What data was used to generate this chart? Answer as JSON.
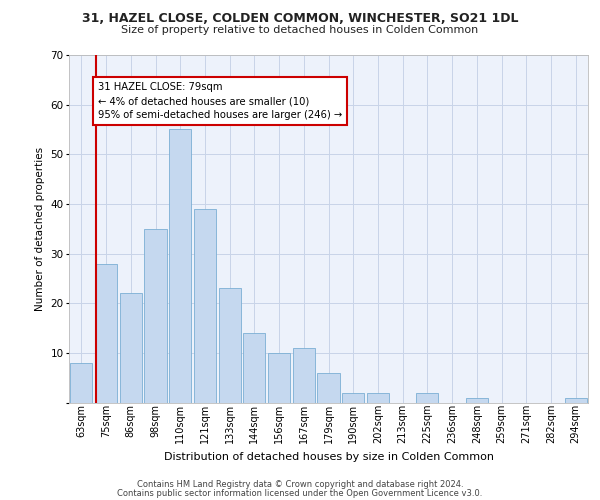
{
  "title_line1": "31, HAZEL CLOSE, COLDEN COMMON, WINCHESTER, SO21 1DL",
  "title_line2": "Size of property relative to detached houses in Colden Common",
  "xlabel": "Distribution of detached houses by size in Colden Common",
  "ylabel": "Number of detached properties",
  "categories": [
    "63sqm",
    "75sqm",
    "86sqm",
    "98sqm",
    "110sqm",
    "121sqm",
    "133sqm",
    "144sqm",
    "156sqm",
    "167sqm",
    "179sqm",
    "190sqm",
    "202sqm",
    "213sqm",
    "225sqm",
    "236sqm",
    "248sqm",
    "259sqm",
    "271sqm",
    "282sqm",
    "294sqm"
  ],
  "values": [
    8,
    28,
    22,
    35,
    55,
    39,
    23,
    14,
    10,
    11,
    6,
    2,
    2,
    0,
    2,
    0,
    1,
    0,
    0,
    0,
    1
  ],
  "bar_color": "#c5d8ef",
  "bar_edge_color": "#7bafd4",
  "ylim": [
    0,
    70
  ],
  "yticks": [
    0,
    10,
    20,
    30,
    40,
    50,
    60,
    70
  ],
  "annotation_text": "31 HAZEL CLOSE: 79sqm\n← 4% of detached houses are smaller (10)\n95% of semi-detached houses are larger (246) →",
  "annotation_box_color": "#ffffff",
  "annotation_box_edge": "#cc0000",
  "red_line_color": "#cc0000",
  "footer_line1": "Contains HM Land Registry data © Crown copyright and database right 2024.",
  "footer_line2": "Contains public sector information licensed under the Open Government Licence v3.0.",
  "grid_color": "#c8d4e8",
  "bg_color": "#edf2fb"
}
